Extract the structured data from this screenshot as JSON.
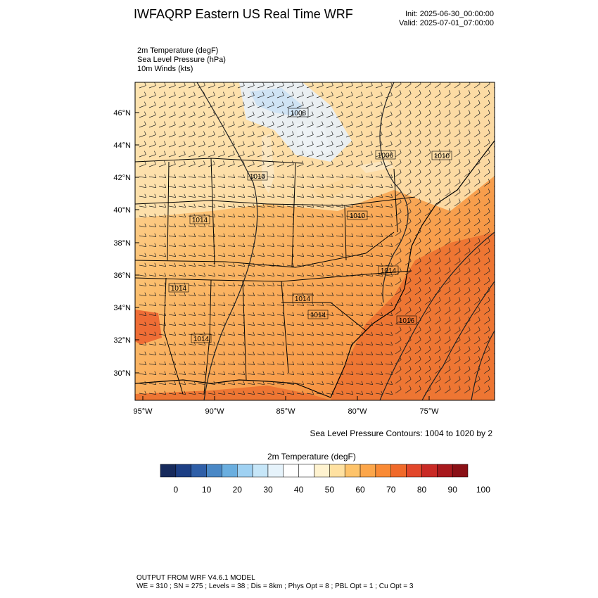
{
  "header": {
    "title": "IWFAQRP Eastern US Real Time WRF",
    "init": "Init: 2025-06-30_00:00:00",
    "valid": "Valid: 2025-07-01_07:00:00"
  },
  "fields": [
    "2m Temperature   (degF)",
    "Sea Level Pressure   (hPa)",
    "10m Winds   (kts)"
  ],
  "map": {
    "lat_labels": [
      "46°N",
      "44°N",
      "42°N",
      "40°N",
      "38°N",
      "36°N",
      "34°N",
      "32°N",
      "30°N"
    ],
    "lon_labels": [
      "95°W",
      "90°W",
      "85°W",
      "80°W",
      "75°W"
    ],
    "pressure_labels": [
      "1008",
      "1006",
      "1010",
      "1010",
      "1014",
      "1010",
      "1014",
      "1014",
      "1014",
      "1014",
      "1014",
      "1016"
    ],
    "colors": {
      "land_warm": "#f7a24a",
      "ocean_hot": "#ec6c2a",
      "cool_lake": "#e8f1fa",
      "mid": "#fbcf7e"
    }
  },
  "contour_note": "Sea Level Pressure Contours: 1004 to 1020 by 2",
  "colorbar": {
    "title": "2m Temperature  (degF)",
    "tick_labels": [
      "0",
      "10",
      "20",
      "30",
      "40",
      "50",
      "60",
      "70",
      "80",
      "90",
      "100"
    ],
    "colors": [
      "#172a5c",
      "#1d3f85",
      "#2f5fa8",
      "#4a88c6",
      "#6aaedf",
      "#9fd1f2",
      "#c6e6f8",
      "#e6f3fb",
      "#ffffff",
      "#ffffff",
      "#fff3d0",
      "#ffe1a1",
      "#fdc36a",
      "#fca64a",
      "#f98a35",
      "#f06a2a",
      "#e2472b",
      "#c92a25",
      "#a8191d",
      "#8a1016"
    ]
  },
  "footer": {
    "line1": "OUTPUT FROM WRF V4.6.1 MODEL",
    "line2": "WE = 310 ; SN = 275 ; Levels = 38 ; Dis = 8km ; Phys Opt = 8 ; PBL Opt = 1 ; Cu Opt = 3"
  }
}
